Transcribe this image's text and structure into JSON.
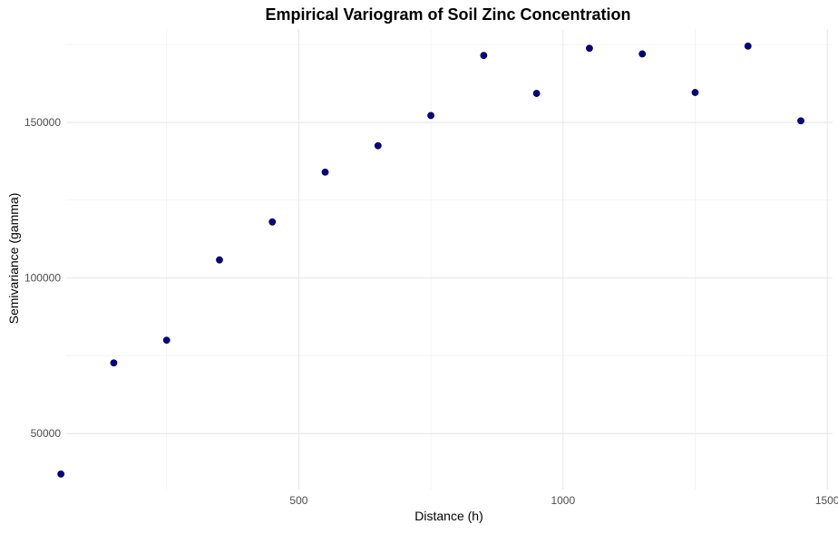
{
  "chart_data": {
    "type": "scatter",
    "title": "Empirical Variogram of Soil Zinc Concentration",
    "xlabel": "Distance (h)",
    "ylabel": "Semivariance (gamma)",
    "xlim": [
      60,
      1510
    ],
    "ylim": [
      32000,
      180000
    ],
    "x_ticks": [
      500,
      1000,
      1500
    ],
    "x_tick_labels": [
      "500",
      "1000",
      "1500"
    ],
    "x_minor_ticks": [
      250,
      750,
      1250
    ],
    "y_ticks": [
      50000,
      100000,
      150000
    ],
    "y_tick_labels": [
      "50000",
      "100000",
      "150000"
    ],
    "y_minor_ticks": [
      75000,
      125000,
      175000
    ],
    "grid": true,
    "point_color": "#00008B",
    "x": [
      50,
      150,
      250,
      350,
      450,
      550,
      650,
      750,
      850,
      950,
      1050,
      1150,
      1250,
      1350,
      1450
    ],
    "y": [
      37000,
      72700,
      80000,
      105800,
      118000,
      134000,
      142500,
      152200,
      171500,
      159300,
      173800,
      172000,
      159600,
      174500,
      150500
    ]
  }
}
